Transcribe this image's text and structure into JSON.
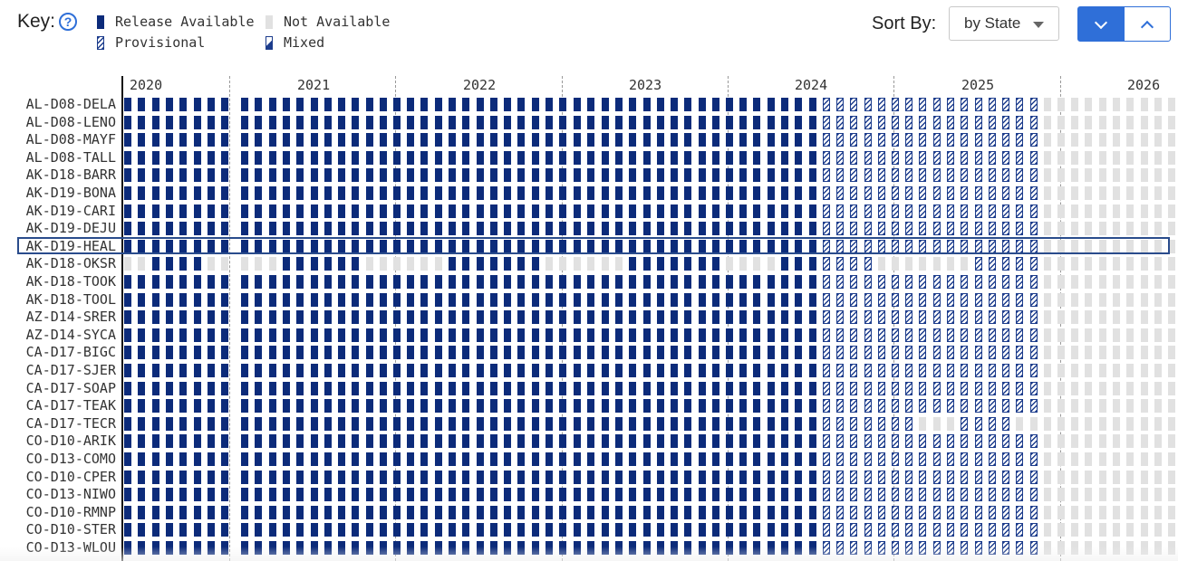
{
  "key": {
    "title": "Key:",
    "help_icon": "question-circle-icon",
    "items": [
      {
        "label": "Release Available",
        "type": "release"
      },
      {
        "label": "Not Available",
        "type": "not-available"
      },
      {
        "label": "Provisional",
        "type": "provisional"
      },
      {
        "label": "Mixed",
        "type": "mixed"
      }
    ]
  },
  "sort": {
    "label": "Sort By:",
    "selected": "by State",
    "descending_icon": "chevron-down-icon",
    "ascending_icon": "chevron-up-icon"
  },
  "colors": {
    "release": "#0c2b7a",
    "not_available": "#e1e1e1",
    "provisional": "#1c3c8c",
    "accent": "#2f6fd8"
  },
  "timeline": {
    "years": [
      "2020",
      "2021",
      "2022",
      "2023",
      "2024",
      "2025",
      "2026"
    ],
    "selected_site": "AK-D19-HEAL",
    "sites": [
      {
        "name": "AL-D08-DELA",
        "months": "NNRRRRRRRR|RRRRRRRRRRRR|RRRRRRRRRRRR|RRRRRRRRRRRR|RRRRRRPPPPPP|PPPPPPPPPPNN|NNNNNNNNNN"
      },
      {
        "name": "AL-D08-LENO",
        "months": "NNRRRRRRRR|RRRRRRRRRRRR|RRRRRRRRRRRR|RRRRRRRRRRRR|RRRRRRPPPPPP|PPPPPPPPPPNN|NNNNNNNNNN"
      },
      {
        "name": "AL-D08-MAYF",
        "months": "NNRRRRRRRR|RRRRRRRRRRRR|RRRRRRRRRRRR|RRRRRRRRRRRR|RRRRRRPPPPPP|PPPPPPPPPPNN|NNNNNNNNNN"
      },
      {
        "name": "AL-D08-TALL",
        "months": "NNRRRRRRRR|RRRRRRRRRRRR|RRRRRRRRRRRR|RRRRRRRRRRRR|RRRRRRPPPPPP|PPPPPPPPPPNN|NNNNNNNNNN"
      },
      {
        "name": "AK-D18-BARR",
        "months": "NNRRRRRRRR|RRRRRRRRRRRR|RRRRRRRRRRRR|RRRRRRRRRRRR|RRRRRRPPPPPP|PPPPPPPPPPNN|NNNNNNNNNN"
      },
      {
        "name": "AK-D19-BONA",
        "months": "NNRRRRRRRR|RRRRRRRRRRRR|RRRRRRRRRRRR|RRRRRRRRRRRR|RRRRRRPPPPPP|PPPPPPPPPPNN|NNNNNNNNNN"
      },
      {
        "name": "AK-D19-CARI",
        "months": "NNRRRRRRRR|RRRRRRRRRRRR|RRRRRRRRRRRR|RRRRRRRRRRRR|RRRRRRPPPPPP|PPPPPPPPPPNN|NNNNNNNNNN"
      },
      {
        "name": "AK-D19-DEJU",
        "months": "NNRRRRRRRR|RRRRRRRRRRRR|RRRRRRRRRRRR|RRRRRRRRRRRR|RRRRRRPPPPPP|PPPPPPPPPPNN|NNNNNNNNNN"
      },
      {
        "name": "AK-D19-HEAL",
        "months": "NNRRRRRRRR|RRRRRRRRRRRR|RRRRRRRRRRRR|RRRRRRRRRRRR|RRRRRRPPPPPP|PPPPPPPPPPNN|NNNNNNNNNN"
      },
      {
        "name": "AK-D18-OKSR",
        "months": "NNNNRRRRNN|NNNRRRRRRNNN|NNNRRRRRRRNN|NNNNRRRRRRRN|NNNRRRPPPPNN|NNNNNPPPPPNN|NNNNNNNNNN"
      },
      {
        "name": "AK-D18-TOOK",
        "months": "NNRRRRRRRR|RRRRRRRRRRRR|RRRRRRRRRRRR|RRRRRRRRRRRR|RRRRRRPPPPPP|PPPPPPPPPPNN|NNNNNNNNNN"
      },
      {
        "name": "AK-D18-TOOL",
        "months": "NNRRRRRRRR|RRRRRRRRRRRR|RRRRRRRRRRRR|RRRRRRRRRRRR|RRRRRRPPPPPP|PPPPPPPPPPNN|NNNNNNNNNN"
      },
      {
        "name": "AZ-D14-SRER",
        "months": "NNRRRRRRRR|RRRRRRRRRRRR|RRRRRRRRRRRR|RRRRRRRRRRRR|RRRRRRPPPPPP|PPPPPPPPPPNN|NNNNNNNNNN"
      },
      {
        "name": "AZ-D14-SYCA",
        "months": "NNRRRRRRRR|RRRRRRRRRRRR|RRRRRRRRRRRR|RRRRRRRRRRRR|RRRRRRPPPPPP|PPPPPPPPPPNN|NNNNNNNNNN"
      },
      {
        "name": "CA-D17-BIGC",
        "months": "NNRRRRRRRR|RRRRRRRRRRRR|RRRRRRRRRRRR|RRRRRRRRRRRR|RRRRRRPPPPPP|PPPPPPPPPPNN|NNNNNNNNNN"
      },
      {
        "name": "CA-D17-SJER",
        "months": "NNRRRRRRRR|RRRRRRRRRRRR|RRRRRRRRRRRR|RRRRRRRRRRRR|RRRRRRPPPPPP|PPPPPPPPPPNN|NNNNNNNNNN"
      },
      {
        "name": "CA-D17-SOAP",
        "months": "NNRRRRRRRR|RRRRRRRRRRRR|RRRRRRRRRRRR|RRRRRRRRRRRR|RRRRRRPPPPPP|PPPPPPPPPPNN|NNNNNNNNNN"
      },
      {
        "name": "CA-D17-TEAK",
        "months": "NNRRRRRRRR|RRRRRRRRRRRR|RRRRRRRRRRRR|RRRRRRRRRRRR|RRRRRRPPPPPP|PPPPPPPPPPNN|NNNNNNNNNN"
      },
      {
        "name": "CA-D17-TECR",
        "months": "NNRRRRRRRR|RRRRRRRRRRRR|RRRRRRRRRRRR|RRRRRRRRRRRR|RRRRRRPPPPPP|PNNNPPPPNNNN|NNNNNNNNNN"
      },
      {
        "name": "CO-D10-ARIK",
        "months": "NNRRRRRRRR|RRRRRRRRRRRR|RRRRRRRRRRRR|RRRRRRRRRRRR|RRRRRRPPPPPP|PPPPPPPPPPNN|NNNNNNNNNN"
      },
      {
        "name": "CO-D13-COMO",
        "months": "NNRRRRRRRR|RRRRRRRRRRRR|RRRRRRRRRRRR|RRRRRRRRRRRR|RRRRRRPPPPPP|PPPPPPPPPPNN|NNNNNNNNNN"
      },
      {
        "name": "CO-D10-CPER",
        "months": "NNRRRRRRRR|RRRRRRRRRRRR|RRRRRRRRRRRR|RRRRRRRRRRRR|RRRRRRPPPPPP|PPPPPPPPPPNN|NNNNNNNNNN"
      },
      {
        "name": "CO-D13-NIWO",
        "months": "NNRRRRRRRR|RRRRRRRRRRRR|RRRRRRRRRRRR|RRRRRRRRRRRR|RRRRRRPPPPPP|PPPPPPPPPPNN|NNNNNNNNNN"
      },
      {
        "name": "CO-D10-RMNP",
        "months": "NNRRRRRRRR|RRRRRRRRRRRR|RRRRRRRRRRRR|RRRRRRRRRRRR|RRRRRRPPPPPP|PPPPPPPPPPNN|NNNNNNNNNN"
      },
      {
        "name": "CO-D10-STER",
        "months": "NNRRRRRRRR|RRRRRRRRRRRR|RRRRRRRRRRRR|RRRRRRRRRRRR|RRRRRRPPPPPP|PPPPPPPPPPNN|NNNNNNNNNN"
      },
      {
        "name": "CO-D13-WLOU",
        "months": "NNRRRRRRRR|RRRRRRRRRRRR|RRRRRRRRRRRR|RRRRRRRRRRRR|RRRRRRPPPPPP|PPPPPPPPPPNN|NNNNNNNNNN"
      }
    ]
  }
}
